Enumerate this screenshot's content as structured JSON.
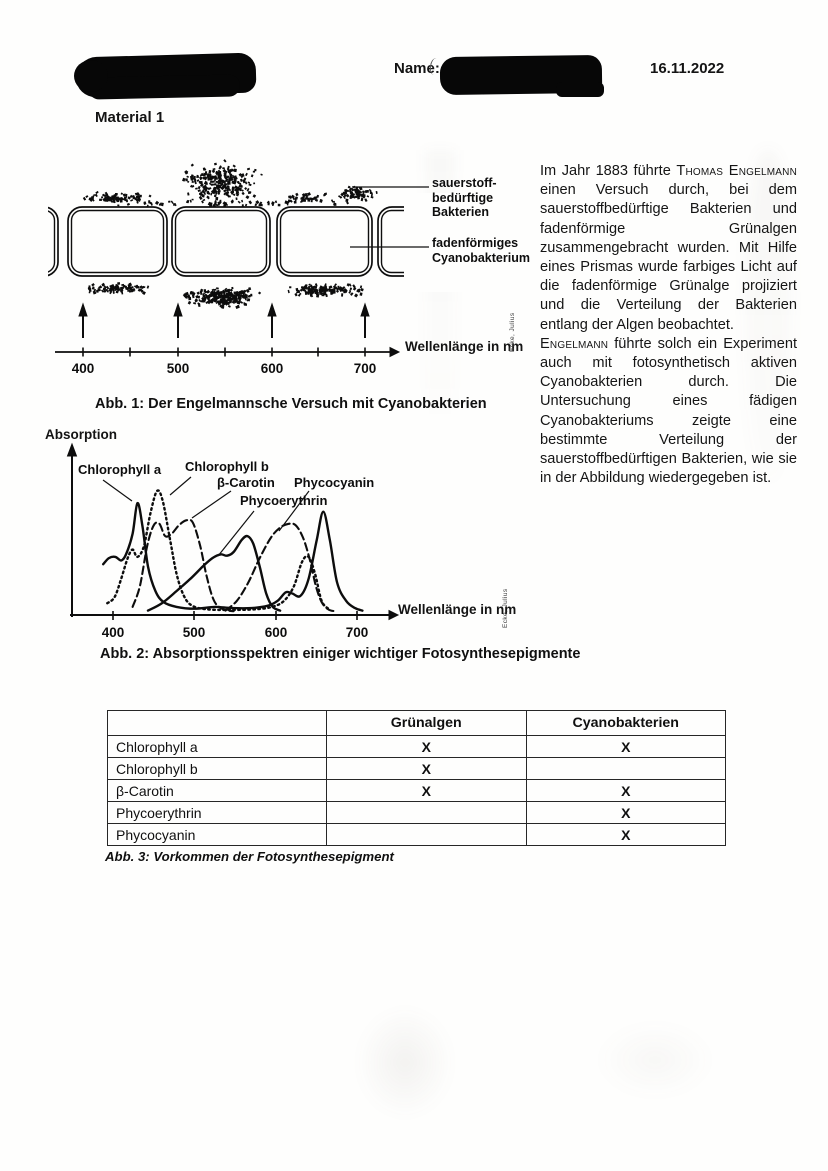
{
  "page": {
    "header": {
      "name_label": "Name:",
      "date": "16.11.2022",
      "material_title": "Material 1"
    },
    "fig1": {
      "labels": {
        "bacteria": [
          "sauerstoff-",
          "bedürftige",
          "Bakterien"
        ],
        "cyano": [
          "fadenförmiges",
          "Cyanobakterium"
        ]
      },
      "axis": {
        "ticks": [
          "400",
          "500",
          "600",
          "700"
        ],
        "label": "Wellenlänge in nm"
      },
      "caption": "Abb. 1: Der Engelmannsche Versuch mit Cyanobakterien"
    },
    "sidebar_text": {
      "paragraphs": [
        [
          {
            "t": "Im Jahr 1883 führte "
          },
          {
            "t": "Thomas Engelmann",
            "sc": true
          },
          {
            "t": " einen Versuch durch, bei dem sauerstoffbedürftige Bakterien und fadenförmige Grünalgen zusammengebracht wurden. Mit Hilfe eines Prismas wurde farbiges Licht auf die fadenförmige Grünalge projiziert und die Verteilung der Bakterien entlang der Algen beobachtet."
          }
        ],
        [
          {
            "t": "Engelmann",
            "sc": true
          },
          {
            "t": " führte solch ein Experiment auch mit fotosynthetisch aktiven Cyanobakterien durch. Die Untersuchung eines fädigen Cyanobakteriums zeigte eine bestimmte Verteilung der sauerstoffbedürftigen Bakterien, wie sie in der Abbildung wiedergegeben ist."
          }
        ]
      ]
    },
    "fig2": {
      "caption": "Abb. 2: Absorptionsspektren einiger wichtiger Fotosynthesepigmente"
    },
    "table": {
      "col_headers": [
        "",
        "Grünalgen",
        "Cyanobakterien"
      ],
      "rows": [
        [
          "Chlorophyll a",
          "X",
          "X"
        ],
        [
          "Chlorophyll b",
          "X",
          ""
        ],
        [
          "β-Carotin",
          "X",
          "X"
        ],
        [
          "Phycoerythrin",
          "",
          "X"
        ],
        [
          "Phycocyanin",
          "",
          "X"
        ]
      ],
      "caption": "Abb. 3: Vorkommen der Fotosynthesepigment"
    },
    "watermark": "Ecke, Julius"
  },
  "chart_data": {
    "type": "line",
    "title": "Absorptionsspektren einiger wichtiger Fotosynthesepigmente",
    "xlabel": "Wellenlänge in nm",
    "ylabel": "Absorption",
    "x_ticks": [
      "400",
      "500",
      "600",
      "700"
    ],
    "xlim": [
      385,
      710
    ],
    "ylim": [
      0,
      1
    ],
    "grid": false,
    "legend_position": "inline-labels",
    "series": [
      {
        "name": "Chlorophyll a",
        "line_style": "solid",
        "points": [
          [
            388,
            0.4
          ],
          [
            395,
            0.45
          ],
          [
            403,
            0.46
          ],
          [
            410,
            0.43
          ],
          [
            416,
            0.48
          ],
          [
            424,
            0.65
          ],
          [
            430,
            0.9
          ],
          [
            436,
            0.72
          ],
          [
            443,
            0.38
          ],
          [
            452,
            0.18
          ],
          [
            462,
            0.09
          ],
          [
            478,
            0.05
          ],
          [
            500,
            0.035
          ],
          [
            525,
            0.05
          ],
          [
            545,
            0.04
          ],
          [
            570,
            0.04
          ],
          [
            590,
            0.06
          ],
          [
            602,
            0.1
          ],
          [
            612,
            0.17
          ],
          [
            620,
            0.16
          ],
          [
            630,
            0.14
          ],
          [
            640,
            0.28
          ],
          [
            650,
            0.6
          ],
          [
            658,
            0.83
          ],
          [
            666,
            0.6
          ],
          [
            675,
            0.25
          ],
          [
            686,
            0.1
          ],
          [
            697,
            0.04
          ],
          [
            706,
            0.02
          ]
        ]
      },
      {
        "name": "Chlorophyll b",
        "line_style": "dotted",
        "points": [
          [
            393,
            0.08
          ],
          [
            402,
            0.13
          ],
          [
            410,
            0.28
          ],
          [
            418,
            0.45
          ],
          [
            424,
            0.52
          ],
          [
            430,
            0.46
          ],
          [
            438,
            0.55
          ],
          [
            446,
            0.82
          ],
          [
            454,
            1.0
          ],
          [
            461,
            0.92
          ],
          [
            470,
            0.6
          ],
          [
            478,
            0.32
          ],
          [
            487,
            0.14
          ],
          [
            497,
            0.06
          ],
          [
            515,
            0.03
          ],
          [
            545,
            0.025
          ],
          [
            575,
            0.03
          ],
          [
            595,
            0.05
          ],
          [
            610,
            0.1
          ],
          [
            622,
            0.22
          ],
          [
            632,
            0.42
          ],
          [
            640,
            0.46
          ],
          [
            648,
            0.32
          ],
          [
            656,
            0.1
          ],
          [
            665,
            0.03
          ]
        ]
      },
      {
        "name": "β-Carotin",
        "line_style": "dashed",
        "points": [
          [
            424,
            0.05
          ],
          [
            433,
            0.22
          ],
          [
            442,
            0.55
          ],
          [
            450,
            0.72
          ],
          [
            457,
            0.73
          ],
          [
            464,
            0.63
          ],
          [
            472,
            0.65
          ],
          [
            481,
            0.72
          ],
          [
            490,
            0.76
          ],
          [
            498,
            0.74
          ],
          [
            507,
            0.55
          ],
          [
            515,
            0.3
          ],
          [
            524,
            0.1
          ],
          [
            535,
            0.03
          ],
          [
            548,
            0.015
          ]
        ]
      },
      {
        "name": "Phycocyanin",
        "line_style": "dashed",
        "points": [
          [
            538,
            0.02
          ],
          [
            552,
            0.1
          ],
          [
            566,
            0.25
          ],
          [
            580,
            0.45
          ],
          [
            594,
            0.62
          ],
          [
            605,
            0.7
          ],
          [
            615,
            0.73
          ],
          [
            624,
            0.72
          ],
          [
            633,
            0.62
          ],
          [
            641,
            0.45
          ],
          [
            649,
            0.22
          ],
          [
            656,
            0.09
          ],
          [
            664,
            0.03
          ],
          [
            672,
            0.015
          ]
        ]
      },
      {
        "name": "Phycoerythrin",
        "line_style": "solid",
        "points": [
          [
            443,
            0.02
          ],
          [
            460,
            0.08
          ],
          [
            478,
            0.18
          ],
          [
            495,
            0.28
          ],
          [
            510,
            0.38
          ],
          [
            522,
            0.45
          ],
          [
            532,
            0.48
          ],
          [
            540,
            0.47
          ],
          [
            548,
            0.5
          ],
          [
            558,
            0.6
          ],
          [
            565,
            0.63
          ],
          [
            572,
            0.57
          ],
          [
            580,
            0.38
          ],
          [
            588,
            0.16
          ],
          [
            596,
            0.05
          ],
          [
            605,
            0.02
          ]
        ]
      }
    ]
  }
}
